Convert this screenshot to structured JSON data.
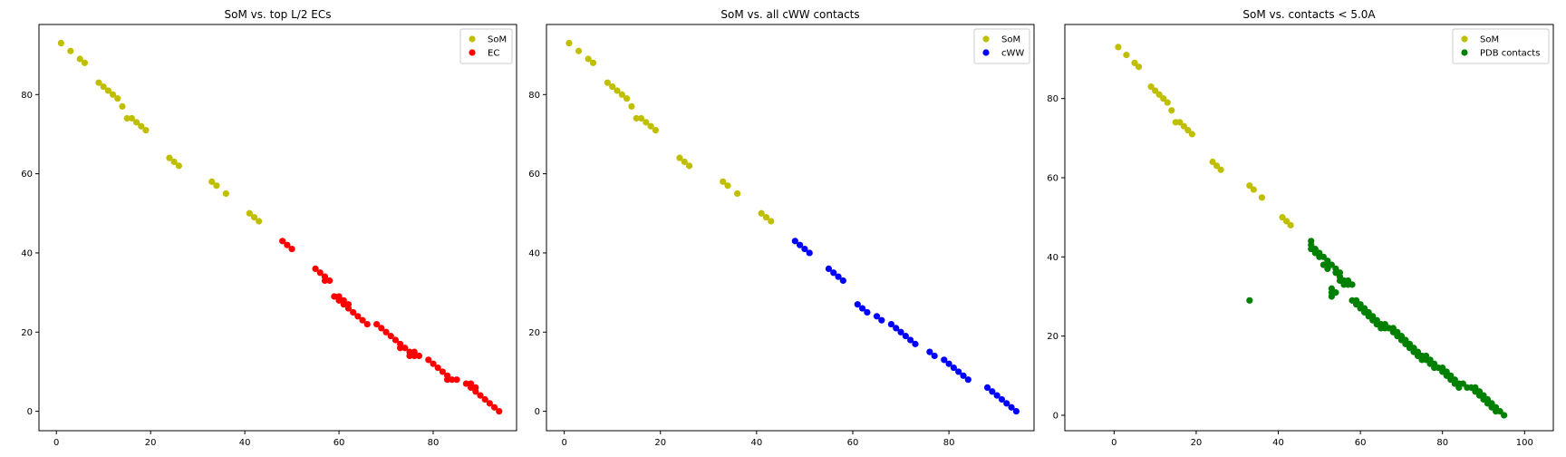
{
  "chart_data": [
    {
      "type": "scatter",
      "title": "SoM vs. top L/2 ECs",
      "xlim": [
        -3.7,
        97.7
      ],
      "ylim": [
        -4.9,
        97.7
      ],
      "xticks": [
        0,
        20,
        40,
        60,
        80
      ],
      "yticks": [
        0,
        20,
        40,
        60,
        80
      ],
      "legend_position": "top-right",
      "series": [
        {
          "name": "SoM",
          "color": "#bfbf00",
          "x": [
            1,
            3,
            5,
            6,
            9,
            10,
            11,
            12,
            13,
            14,
            15,
            16,
            17,
            18,
            19,
            24,
            25,
            26,
            33,
            34,
            36,
            41,
            42,
            43
          ],
          "y": [
            93,
            91,
            89,
            88,
            83,
            82,
            81,
            80,
            79,
            77,
            74,
            74,
            73,
            72,
            71,
            64,
            63,
            62,
            58,
            57,
            55,
            50,
            49,
            48
          ]
        },
        {
          "name": "EC",
          "color": "#ff0000",
          "x": [
            48,
            49,
            50,
            55,
            56,
            57,
            57,
            58,
            59,
            60,
            60,
            61,
            61,
            62,
            62,
            63,
            64,
            65,
            66,
            68,
            69,
            70,
            71,
            72,
            73,
            73,
            74,
            75,
            75,
            76,
            76,
            77,
            79,
            80,
            81,
            82,
            83,
            83,
            84,
            85,
            87,
            88,
            88,
            89,
            89,
            90,
            91,
            92,
            93,
            94
          ],
          "y": [
            43,
            42,
            41,
            36,
            35,
            34,
            33,
            33,
            29,
            29,
            28,
            28,
            27,
            27,
            26,
            25,
            24,
            23,
            22,
            22,
            21,
            20,
            19,
            18,
            17,
            16,
            16,
            15,
            14,
            15,
            14,
            14,
            13,
            12,
            11,
            10,
            9,
            8,
            8,
            8,
            7,
            7,
            6,
            6,
            5,
            4,
            3,
            2,
            1,
            0
          ]
        }
      ]
    },
    {
      "type": "scatter",
      "title": "SoM vs. all cWW contacts",
      "xlim": [
        -3.7,
        97.7
      ],
      "ylim": [
        -4.9,
        97.7
      ],
      "xticks": [
        0,
        20,
        40,
        60,
        80
      ],
      "yticks": [
        0,
        20,
        40,
        60,
        80
      ],
      "legend_position": "top-right",
      "series": [
        {
          "name": "SoM",
          "color": "#bfbf00",
          "x": [
            1,
            3,
            5,
            6,
            9,
            10,
            11,
            12,
            13,
            14,
            15,
            16,
            17,
            18,
            19,
            24,
            25,
            26,
            33,
            34,
            36,
            41,
            42,
            43
          ],
          "y": [
            93,
            91,
            89,
            88,
            83,
            82,
            81,
            80,
            79,
            77,
            74,
            74,
            73,
            72,
            71,
            64,
            63,
            62,
            58,
            57,
            55,
            50,
            49,
            48
          ]
        },
        {
          "name": "cWW",
          "color": "#0000ff",
          "x": [
            48,
            49,
            50,
            51,
            55,
            56,
            57,
            58,
            61,
            62,
            63,
            65,
            66,
            68,
            69,
            70,
            71,
            72,
            73,
            76,
            77,
            79,
            80,
            81,
            82,
            83,
            84,
            88,
            89,
            90,
            91,
            92,
            93,
            94
          ],
          "y": [
            43,
            42,
            41,
            40,
            36,
            35,
            34,
            33,
            27,
            26,
            25,
            24,
            23,
            22,
            21,
            20,
            19,
            18,
            17,
            15,
            14,
            13,
            12,
            11,
            10,
            9,
            8,
            6,
            5,
            4,
            3,
            2,
            1,
            0
          ]
        }
      ]
    },
    {
      "type": "scatter",
      "title": "SoM vs. contacts < 5.0A",
      "xlim": [
        -12,
        107
      ],
      "ylim": [
        -3.9,
        98.7
      ],
      "xticks": [
        0,
        20,
        40,
        60,
        80,
        100
      ],
      "yticks": [
        0,
        20,
        40,
        60,
        80
      ],
      "legend_position": "top-right",
      "series": [
        {
          "name": "SoM",
          "color": "#bfbf00",
          "x": [
            1,
            3,
            5,
            6,
            9,
            10,
            11,
            12,
            13,
            14,
            15,
            16,
            17,
            18,
            19,
            24,
            25,
            26,
            33,
            34,
            36,
            41,
            42,
            43
          ],
          "y": [
            93,
            91,
            89,
            88,
            83,
            82,
            81,
            80,
            79,
            77,
            74,
            74,
            73,
            72,
            71,
            64,
            63,
            62,
            58,
            57,
            55,
            50,
            49,
            48
          ]
        },
        {
          "name": "PDB contacts",
          "color": "#008000",
          "x": [
            33,
            48,
            48,
            48,
            49,
            49,
            50,
            50,
            51,
            51,
            52,
            52,
            52,
            53,
            53,
            53,
            53,
            54,
            54,
            54,
            55,
            55,
            55,
            56,
            56,
            57,
            57,
            58,
            58,
            59,
            59,
            60,
            60,
            61,
            61,
            62,
            62,
            63,
            63,
            64,
            64,
            65,
            65,
            66,
            66,
            67,
            68,
            68,
            69,
            69,
            70,
            70,
            71,
            71,
            72,
            72,
            73,
            73,
            74,
            74,
            75,
            75,
            76,
            76,
            77,
            77,
            78,
            78,
            79,
            80,
            80,
            81,
            81,
            82,
            82,
            83,
            83,
            84,
            84,
            85,
            86,
            87,
            88,
            88,
            89,
            89,
            90,
            90,
            91,
            91,
            92,
            92,
            93,
            93,
            94,
            95
          ],
          "y": [
            29,
            44,
            43,
            42,
            42,
            41,
            41,
            40,
            40,
            38,
            39,
            38,
            37,
            38,
            32,
            31,
            30,
            37,
            36,
            31,
            36,
            35,
            34,
            34,
            33,
            34,
            33,
            33,
            29,
            29,
            28,
            28,
            27,
            27,
            26,
            26,
            25,
            25,
            24,
            24,
            23,
            23,
            22,
            22,
            23,
            22,
            22,
            21,
            21,
            20,
            20,
            19,
            19,
            18,
            18,
            17,
            17,
            16,
            16,
            15,
            15,
            14,
            15,
            14,
            14,
            13,
            13,
            12,
            12,
            12,
            11,
            11,
            10,
            10,
            9,
            9,
            8,
            8,
            7,
            8,
            7,
            7,
            7,
            6,
            6,
            5,
            5,
            4,
            4,
            3,
            3,
            2,
            2,
            1,
            1,
            0
          ]
        }
      ]
    }
  ]
}
